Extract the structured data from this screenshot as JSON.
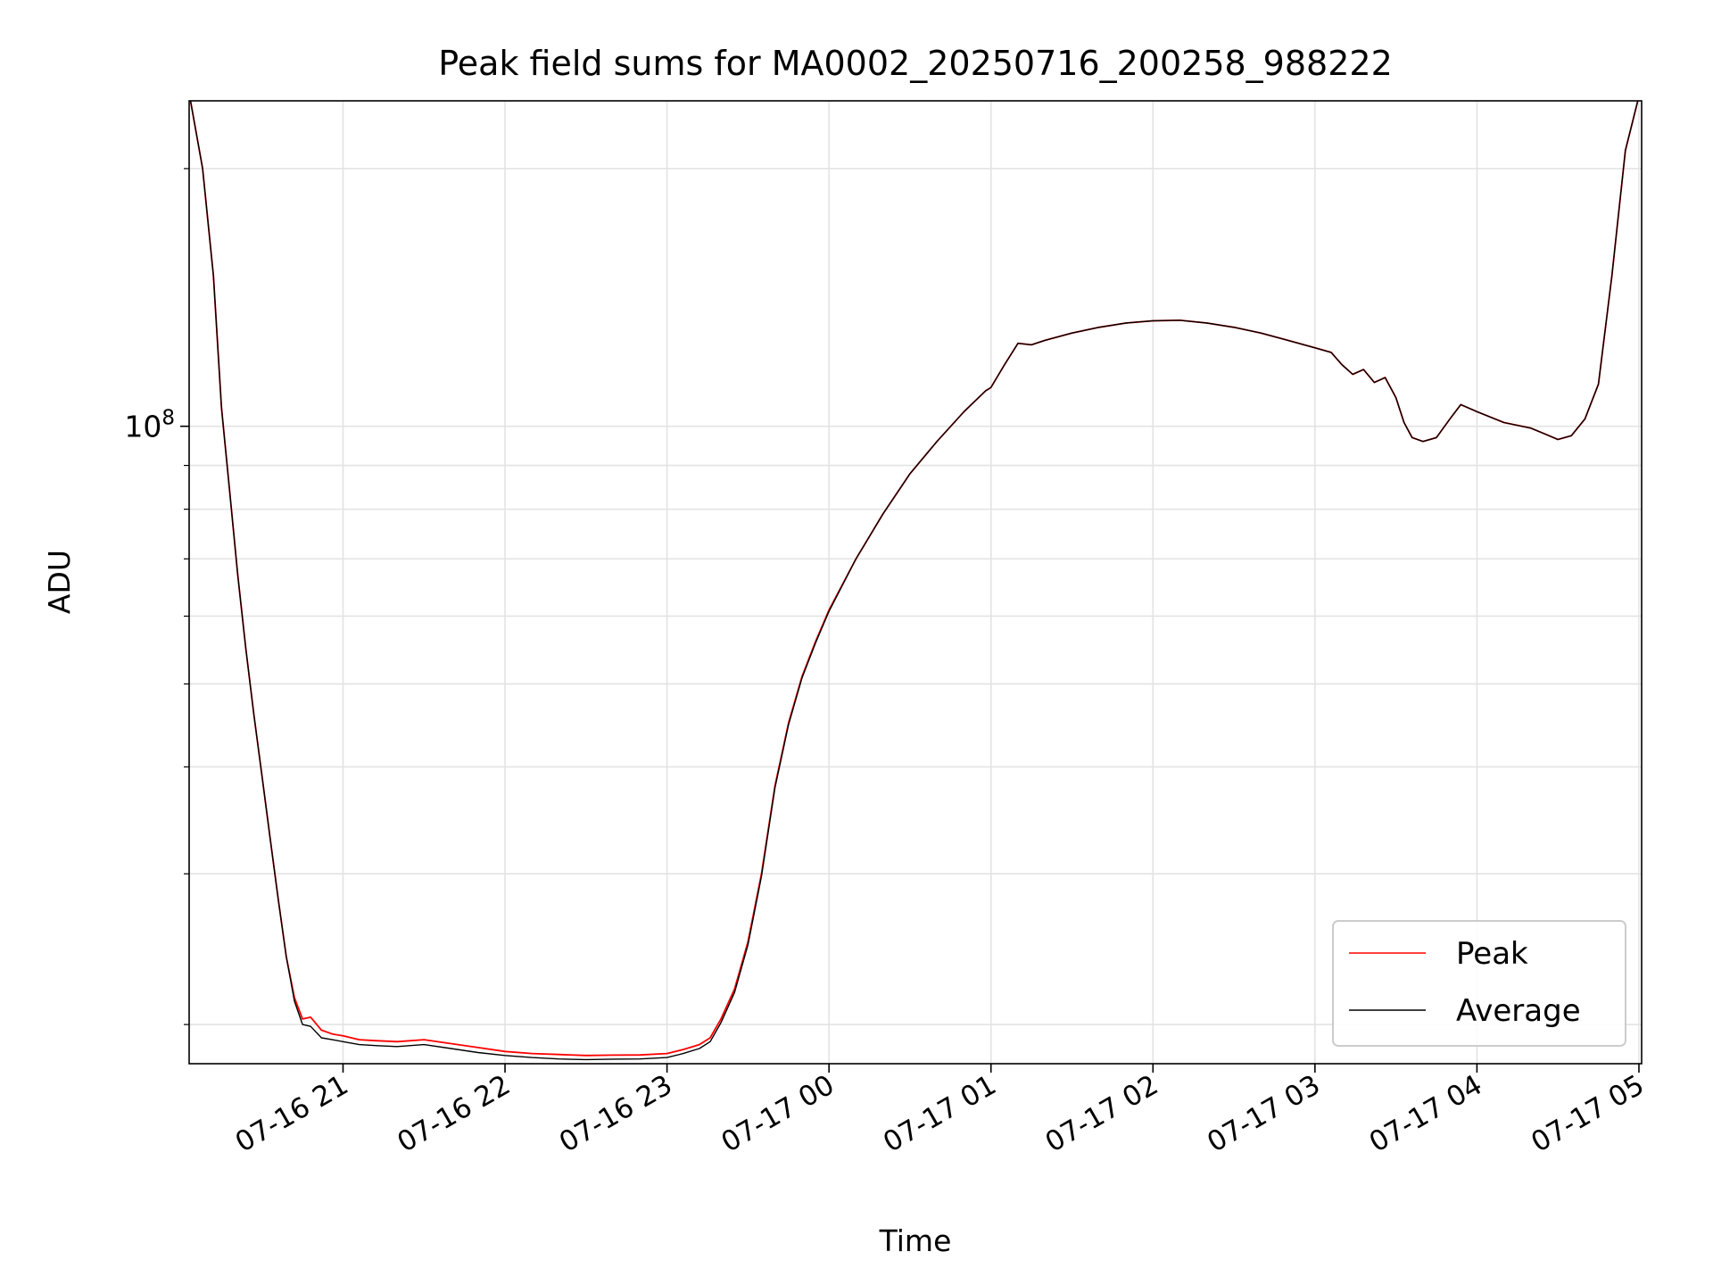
{
  "chart_data": {
    "type": "line",
    "title": "Peak field sums for MA0002_20250716_200258_988222",
    "xlabel": "Time",
    "ylabel": "ADU",
    "yscale": "log",
    "xlim": [
      "2025-07-16T20:03",
      "2025-07-17T05:01"
    ],
    "ylim": [
      18000000,
      240000000
    ],
    "x_ticks": [
      "07-16 21",
      "07-16 22",
      "07-16 23",
      "07-17 00",
      "07-17 01",
      "07-17 02",
      "07-17 03",
      "07-17 04",
      "07-17 05"
    ],
    "x_tick_times": [
      "2025-07-16T21:00",
      "2025-07-16T22:00",
      "2025-07-16T23:00",
      "2025-07-17T00:00",
      "2025-07-17T01:00",
      "2025-07-17T02:00",
      "2025-07-17T03:00",
      "2025-07-17T04:00",
      "2025-07-17T05:00"
    ],
    "y_ticks_major": [
      100000000
    ],
    "y_tick_labels": [
      "10^8"
    ],
    "y_ticks_minor": [
      20000000,
      30000000,
      40000000,
      50000000,
      60000000,
      70000000,
      80000000,
      90000000,
      200000000
    ],
    "grid": true,
    "legend_position": "lower-right",
    "series": [
      {
        "name": "Peak",
        "color": "#ff0000",
        "x": [
          "2025-07-16T20:03",
          "2025-07-16T20:08",
          "2025-07-16T20:12",
          "2025-07-16T20:15",
          "2025-07-16T20:18",
          "2025-07-16T20:21",
          "2025-07-16T20:24",
          "2025-07-16T20:27",
          "2025-07-16T20:30",
          "2025-07-16T20:33",
          "2025-07-16T20:36",
          "2025-07-16T20:39",
          "2025-07-16T20:42",
          "2025-07-16T20:45",
          "2025-07-16T20:48",
          "2025-07-16T20:52",
          "2025-07-16T20:56",
          "2025-07-16T21:00",
          "2025-07-16T21:06",
          "2025-07-16T21:12",
          "2025-07-16T21:20",
          "2025-07-16T21:30",
          "2025-07-16T21:40",
          "2025-07-16T21:50",
          "2025-07-16T22:00",
          "2025-07-16T22:10",
          "2025-07-16T22:20",
          "2025-07-16T22:30",
          "2025-07-16T22:40",
          "2025-07-16T22:50",
          "2025-07-16T23:00",
          "2025-07-16T23:06",
          "2025-07-16T23:12",
          "2025-07-16T23:16",
          "2025-07-16T23:20",
          "2025-07-16T23:25",
          "2025-07-16T23:30",
          "2025-07-16T23:35",
          "2025-07-16T23:40",
          "2025-07-16T23:45",
          "2025-07-16T23:50",
          "2025-07-16T23:55",
          "2025-07-17T00:00",
          "2025-07-17T00:10",
          "2025-07-17T00:20",
          "2025-07-17T00:30",
          "2025-07-17T00:40",
          "2025-07-17T00:50",
          "2025-07-17T00:58",
          "2025-07-17T01:00",
          "2025-07-17T01:05",
          "2025-07-17T01:10",
          "2025-07-17T01:15",
          "2025-07-17T01:20",
          "2025-07-17T01:30",
          "2025-07-17T01:40",
          "2025-07-17T01:50",
          "2025-07-17T02:00",
          "2025-07-17T02:05",
          "2025-07-17T02:10",
          "2025-07-17T02:20",
          "2025-07-17T02:30",
          "2025-07-17T02:40",
          "2025-07-17T02:50",
          "2025-07-17T03:00",
          "2025-07-17T03:06",
          "2025-07-17T03:10",
          "2025-07-17T03:14",
          "2025-07-17T03:18",
          "2025-07-17T03:22",
          "2025-07-17T03:26",
          "2025-07-17T03:30",
          "2025-07-17T03:33",
          "2025-07-17T03:36",
          "2025-07-17T03:40",
          "2025-07-17T03:45",
          "2025-07-17T03:50",
          "2025-07-17T03:54",
          "2025-07-17T04:00",
          "2025-07-17T04:10",
          "2025-07-17T04:20",
          "2025-07-17T04:25",
          "2025-07-17T04:30",
          "2025-07-17T04:35",
          "2025-07-17T04:40",
          "2025-07-17T04:45",
          "2025-07-17T04:50",
          "2025-07-17T04:55",
          "2025-07-17T05:00",
          "2025-07-17T05:01"
        ],
        "y": [
          245000000,
          200000000,
          150000000,
          105000000,
          84000000,
          67000000,
          55000000,
          46000000,
          39000000,
          33000000,
          28000000,
          24000000,
          21500000,
          20300000,
          20400000,
          19700000,
          19500000,
          19400000,
          19200000,
          19150000,
          19100000,
          19200000,
          19000000,
          18800000,
          18600000,
          18500000,
          18450000,
          18400000,
          18420000,
          18430000,
          18500000,
          18700000,
          18950000,
          19300000,
          20300000,
          22000000,
          25000000,
          30000000,
          38000000,
          45000000,
          51000000,
          56000000,
          61000000,
          70000000,
          79000000,
          88000000,
          96000000,
          104000000,
          110000000,
          111000000,
          118000000,
          125000000,
          124500000,
          126000000,
          128500000,
          130500000,
          132000000,
          132800000,
          132900000,
          133000000,
          132000000,
          130500000,
          128500000,
          126000000,
          123500000,
          122000000,
          118000000,
          115000000,
          116500000,
          112500000,
          114000000,
          108000000,
          101000000,
          97000000,
          96000000,
          97000000,
          102000000,
          106000000,
          104000000,
          101000000,
          99500000,
          98000000,
          96500000,
          97500000,
          102000000,
          112000000,
          150000000,
          210000000,
          243000000,
          245000000
        ]
      },
      {
        "name": "Average",
        "color": "#000000",
        "x": [
          "2025-07-16T20:03",
          "2025-07-16T20:08",
          "2025-07-16T20:12",
          "2025-07-16T20:15",
          "2025-07-16T20:18",
          "2025-07-16T20:21",
          "2025-07-16T20:24",
          "2025-07-16T20:27",
          "2025-07-16T20:30",
          "2025-07-16T20:33",
          "2025-07-16T20:36",
          "2025-07-16T20:39",
          "2025-07-16T20:42",
          "2025-07-16T20:45",
          "2025-07-16T20:48",
          "2025-07-16T20:52",
          "2025-07-16T20:56",
          "2025-07-16T21:00",
          "2025-07-16T21:06",
          "2025-07-16T21:12",
          "2025-07-16T21:20",
          "2025-07-16T21:30",
          "2025-07-16T21:40",
          "2025-07-16T21:50",
          "2025-07-16T22:00",
          "2025-07-16T22:10",
          "2025-07-16T22:20",
          "2025-07-16T22:30",
          "2025-07-16T22:40",
          "2025-07-16T22:50",
          "2025-07-16T23:00",
          "2025-07-16T23:06",
          "2025-07-16T23:12",
          "2025-07-16T23:16",
          "2025-07-16T23:20",
          "2025-07-16T23:25",
          "2025-07-16T23:30",
          "2025-07-16T23:35",
          "2025-07-16T23:40",
          "2025-07-16T23:45",
          "2025-07-16T23:50",
          "2025-07-16T23:55",
          "2025-07-17T00:00",
          "2025-07-17T00:10",
          "2025-07-17T00:20",
          "2025-07-17T00:30",
          "2025-07-17T00:40",
          "2025-07-17T00:50",
          "2025-07-17T00:58",
          "2025-07-17T01:00",
          "2025-07-17T01:05",
          "2025-07-17T01:10",
          "2025-07-17T01:15",
          "2025-07-17T01:20",
          "2025-07-17T01:30",
          "2025-07-17T01:40",
          "2025-07-17T01:50",
          "2025-07-17T02:00",
          "2025-07-17T02:05",
          "2025-07-17T02:10",
          "2025-07-17T02:20",
          "2025-07-17T02:30",
          "2025-07-17T02:40",
          "2025-07-17T02:50",
          "2025-07-17T03:00",
          "2025-07-17T03:06",
          "2025-07-17T03:10",
          "2025-07-17T03:14",
          "2025-07-17T03:18",
          "2025-07-17T03:22",
          "2025-07-17T03:26",
          "2025-07-17T03:30",
          "2025-07-17T03:33",
          "2025-07-17T03:36",
          "2025-07-17T03:40",
          "2025-07-17T03:45",
          "2025-07-17T03:50",
          "2025-07-17T03:54",
          "2025-07-17T04:00",
          "2025-07-17T04:10",
          "2025-07-17T04:20",
          "2025-07-17T04:25",
          "2025-07-17T04:30",
          "2025-07-17T04:35",
          "2025-07-17T04:40",
          "2025-07-17T04:45",
          "2025-07-17T04:50",
          "2025-07-17T04:55",
          "2025-07-17T05:00",
          "2025-07-17T05:01"
        ],
        "y": [
          245000000,
          200000000,
          150000000,
          105000000,
          84000000,
          67000000,
          55000000,
          46000000,
          39000000,
          33000000,
          28000000,
          24000000,
          21300000,
          20000000,
          19900000,
          19300000,
          19200000,
          19100000,
          18950000,
          18900000,
          18850000,
          18950000,
          18750000,
          18550000,
          18400000,
          18300000,
          18230000,
          18200000,
          18220000,
          18230000,
          18300000,
          18500000,
          18750000,
          19100000,
          20100000,
          21800000,
          24800000,
          29800000,
          37800000,
          44800000,
          50800000,
          55800000,
          60800000,
          70000000,
          79000000,
          88000000,
          96000000,
          104000000,
          110000000,
          111000000,
          118000000,
          125000000,
          124500000,
          126000000,
          128500000,
          130500000,
          132000000,
          132800000,
          132900000,
          133000000,
          132000000,
          130500000,
          128500000,
          126000000,
          123500000,
          122000000,
          118000000,
          115000000,
          116500000,
          112500000,
          114000000,
          108000000,
          101000000,
          97000000,
          96000000,
          97000000,
          102000000,
          106000000,
          104000000,
          101000000,
          99500000,
          98000000,
          96500000,
          97500000,
          102000000,
          112000000,
          150000000,
          210000000,
          243000000,
          245000000
        ]
      }
    ]
  }
}
